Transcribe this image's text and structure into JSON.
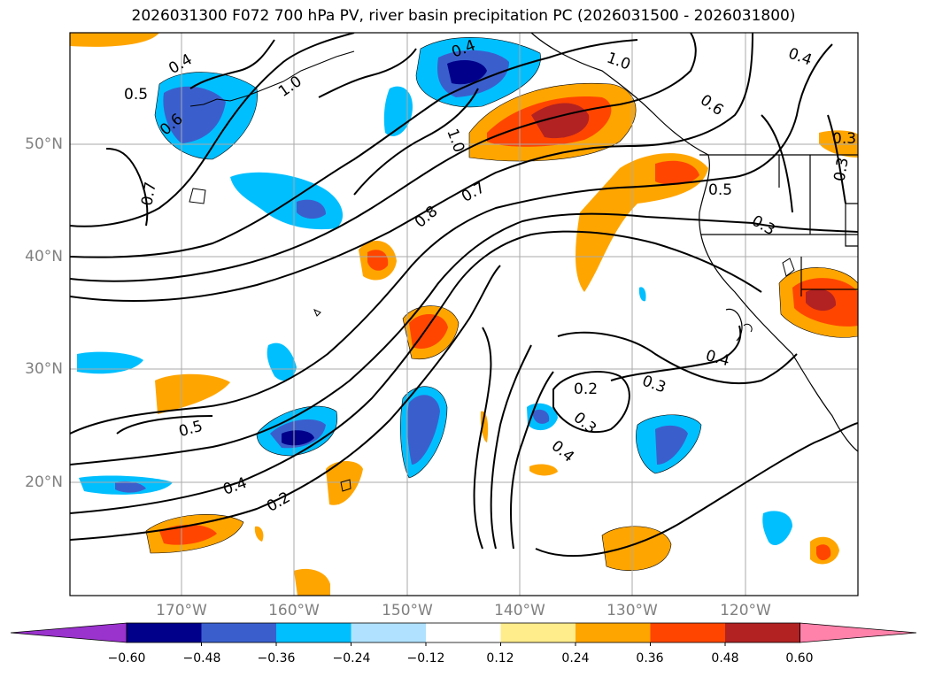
{
  "title": "2026031300 F072 700 hPa PV, river basin precipitation PC (2026031500 - 2026031800)",
  "lat_labels": [
    "50°N",
    "40°N",
    "30°N",
    "20°N"
  ],
  "lon_labels": [
    "170°W",
    "160°W",
    "150°W",
    "140°W",
    "130°W",
    "120°W"
  ],
  "contour_labels": [
    "0.4",
    "0.4",
    "0.5",
    "0.6",
    "1.0",
    "1.0",
    "0.6",
    "0.4",
    "0.3",
    "0.3",
    "0.7",
    "0.8",
    "0.7",
    "1.0",
    "0.5",
    "0.3",
    "0.5",
    "0.4",
    "0.2",
    "0.2",
    "0.3",
    "0.3",
    "0.4",
    "0.4"
  ],
  "colorbar": {
    "ticks": [
      "−0.60",
      "−0.48",
      "−0.36",
      "−0.24",
      "−0.12",
      "0.12",
      "0.24",
      "0.36",
      "0.48",
      "0.60"
    ],
    "colors": [
      "#9a32cd",
      "#00008b",
      "#3a5fcd",
      "#00bfff",
      "#b0e2ff",
      "#ffffff",
      "#ffec8b",
      "#ffa500",
      "#ff4500",
      "#b22222",
      "#ff82ab"
    ]
  }
}
